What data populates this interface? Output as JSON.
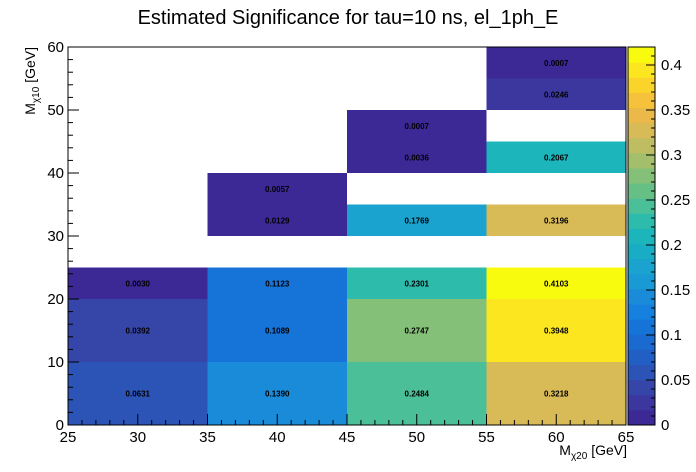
{
  "chart_data": {
    "type": "heatmap",
    "title": "Estimated Significance for tau=10 ns, el_1ph_E",
    "xlabel": {
      "main": "M",
      "sub": "χ20",
      "unit": "[GeV]"
    },
    "ylabel": {
      "main": "M",
      "sub": "χ10",
      "unit": "[GeV]"
    },
    "xlim": [
      25,
      65
    ],
    "ylim": [
      0,
      60
    ],
    "x_ticks": [
      25,
      30,
      35,
      40,
      45,
      50,
      55,
      60,
      65
    ],
    "y_ticks": [
      0,
      10,
      20,
      30,
      40,
      50,
      60
    ],
    "colorbar": {
      "range": [
        0,
        0.42
      ],
      "ticks": [
        0,
        0.05,
        0.1,
        0.15,
        0.2,
        0.25,
        0.3,
        0.35,
        0.4
      ],
      "tick_labels": [
        "0",
        "0.05",
        "0.1",
        "0.15",
        "0.2",
        "0.25",
        "0.3",
        "0.35",
        "0.4"
      ],
      "colors": [
        "#3d2996",
        "#3b379f",
        "#3645a8",
        "#2c54b6",
        "#215fc4",
        "#1a6ad0",
        "#1673d8",
        "#1580dd",
        "#1a8bd8",
        "#199ad5",
        "#1aa3ce",
        "#18adc5",
        "#1bb5bb",
        "#2dbbab",
        "#4abf98",
        "#66c086",
        "#85c078",
        "#a3bf6c",
        "#bfbd61",
        "#d8ba56",
        "#ebb94a",
        "#f7c23b",
        "#fbd42b",
        "#fbe620",
        "#f9fb0e"
      ]
    },
    "cells": [
      {
        "x0": 25,
        "x1": 35,
        "y0": 0,
        "y1": 10,
        "value": 0.0631,
        "label": "0.0631"
      },
      {
        "x0": 25,
        "x1": 35,
        "y0": 10,
        "y1": 20,
        "value": 0.0392,
        "label": "0.0392"
      },
      {
        "x0": 25,
        "x1": 35,
        "y0": 20,
        "y1": 25,
        "value": 0.003,
        "label": "0.0030"
      },
      {
        "x0": 35,
        "x1": 45,
        "y0": 0,
        "y1": 10,
        "value": 0.139,
        "label": "0.1390"
      },
      {
        "x0": 35,
        "x1": 45,
        "y0": 10,
        "y1": 20,
        "value": 0.1089,
        "label": "0.1089"
      },
      {
        "x0": 35,
        "x1": 45,
        "y0": 20,
        "y1": 25,
        "value": 0.1123,
        "label": "0.1123"
      },
      {
        "x0": 35,
        "x1": 45,
        "y0": 30,
        "y1": 35,
        "value": 0.0129,
        "label": "0.0129"
      },
      {
        "x0": 35,
        "x1": 45,
        "y0": 35,
        "y1": 40,
        "value": 0.0057,
        "label": "0.0057"
      },
      {
        "x0": 45,
        "x1": 55,
        "y0": 0,
        "y1": 10,
        "value": 0.2484,
        "label": "0.2484"
      },
      {
        "x0": 45,
        "x1": 55,
        "y0": 10,
        "y1": 20,
        "value": 0.2747,
        "label": "0.2747"
      },
      {
        "x0": 45,
        "x1": 55,
        "y0": 20,
        "y1": 25,
        "value": 0.2301,
        "label": "0.2301"
      },
      {
        "x0": 45,
        "x1": 55,
        "y0": 30,
        "y1": 35,
        "value": 0.1769,
        "label": "0.1769"
      },
      {
        "x0": 45,
        "x1": 55,
        "y0": 40,
        "y1": 45,
        "value": 0.0036,
        "label": "0.0036"
      },
      {
        "x0": 45,
        "x1": 55,
        "y0": 45,
        "y1": 50,
        "value": 0.0007,
        "label": "0.0007"
      },
      {
        "x0": 55,
        "x1": 65,
        "y0": 0,
        "y1": 10,
        "value": 0.3218,
        "label": "0.3218"
      },
      {
        "x0": 55,
        "x1": 65,
        "y0": 10,
        "y1": 20,
        "value": 0.3948,
        "label": "0.3948"
      },
      {
        "x0": 55,
        "x1": 65,
        "y0": 20,
        "y1": 25,
        "value": 0.4103,
        "label": "0.4103"
      },
      {
        "x0": 55,
        "x1": 65,
        "y0": 30,
        "y1": 35,
        "value": 0.3196,
        "label": "0.3196"
      },
      {
        "x0": 55,
        "x1": 65,
        "y0": 40,
        "y1": 45,
        "value": 0.2067,
        "label": "0.2067"
      },
      {
        "x0": 55,
        "x1": 65,
        "y0": 50,
        "y1": 55,
        "value": 0.0246,
        "label": "0.0246"
      },
      {
        "x0": 55,
        "x1": 65,
        "y0": 55,
        "y1": 60,
        "value": 0.0007,
        "label": "0.0007"
      }
    ],
    "grid": false,
    "legend": "colorbar-right"
  }
}
